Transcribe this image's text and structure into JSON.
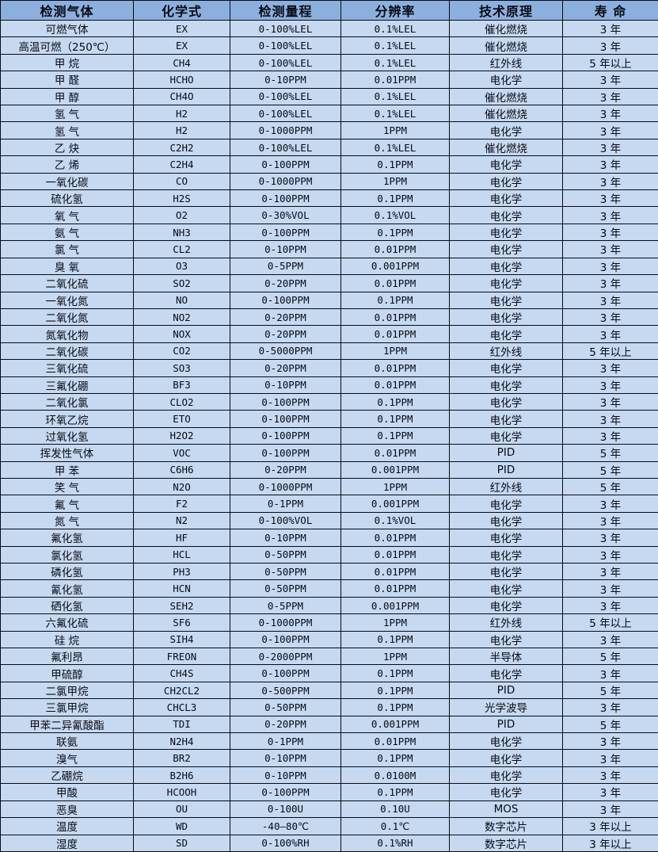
{
  "colors": {
    "header_bg": "#8bb0de",
    "row_bg": "#c6d9f1",
    "border": "#0a0a14",
    "text": "#0a0a14"
  },
  "chart_data": {
    "type": "table",
    "title": "",
    "columns": [
      "检测气体",
      "化学式",
      "检测量程",
      "分辨率",
      "技术原理",
      "寿 命"
    ],
    "rows": [
      [
        "可燃气体",
        "EX",
        "0-100%LEL",
        "0.1%LEL",
        "催化燃烧",
        "3 年"
      ],
      [
        "高温可燃（250℃）",
        "EX",
        "0-100%LEL",
        "0.1%LEL",
        "催化燃烧",
        "3 年"
      ],
      [
        "甲 烷",
        "CH4",
        "0-100%LEL",
        "0.1%LEL",
        "红外线",
        "5 年以上"
      ],
      [
        "甲 醛",
        "HCHO",
        "0-10PPM",
        "0.01PPM",
        "电化学",
        "3 年"
      ],
      [
        "甲 醇",
        "CH4O",
        "0-100%LEL",
        "0.1%LEL",
        "催化燃烧",
        "3 年"
      ],
      [
        "氢 气",
        "H2",
        "0-100%LEL",
        "0.1%LEL",
        "催化燃烧",
        "3 年"
      ],
      [
        "氢 气",
        "H2",
        "0-1000PPM",
        "1PPM",
        "电化学",
        "3 年"
      ],
      [
        "乙 炔",
        "C2H2",
        "0-100%LEL",
        "0.1%LEL",
        "催化燃烧",
        "3 年"
      ],
      [
        "乙 烯",
        "C2H4",
        "0-100PPM",
        "0.1PPM",
        "电化学",
        "3 年"
      ],
      [
        "一氧化碳",
        "CO",
        "0-1000PPM",
        "1PPM",
        "电化学",
        "3 年"
      ],
      [
        "硫化氢",
        "H2S",
        "0-100PPM",
        "0.1PPM",
        "电化学",
        "3 年"
      ],
      [
        "氧 气",
        "O2",
        "0-30%VOL",
        "0.1%VOL",
        "电化学",
        "3 年"
      ],
      [
        "氨 气",
        "NH3",
        "0-100PPM",
        "0.1PPM",
        "电化学",
        "3 年"
      ],
      [
        "氯 气",
        "CL2",
        "0-10PPM",
        "0.01PPM",
        "电化学",
        "3 年"
      ],
      [
        "臭 氧",
        "O3",
        "0-5PPM",
        "0.001PPM",
        "电化学",
        "3 年"
      ],
      [
        "二氧化硫",
        "SO2",
        "0-20PPM",
        "0.01PPM",
        "电化学",
        "3 年"
      ],
      [
        "一氧化氮",
        "NO",
        "0-100PPM",
        "0.1PPM",
        "电化学",
        "3 年"
      ],
      [
        "二氧化氮",
        "NO2",
        "0-20PPM",
        "0.01PPM",
        "电化学",
        "3 年"
      ],
      [
        "氮氧化物",
        "NOX",
        "0-20PPM",
        "0.01PPM",
        "电化学",
        "3 年"
      ],
      [
        "二氧化碳",
        "CO2",
        "0-5000PPM",
        "1PPM",
        "红外线",
        "5 年以上"
      ],
      [
        "三氧化硫",
        "SO3",
        "0-20PPM",
        "0.01PPM",
        "电化学",
        "3 年"
      ],
      [
        "三氟化硼",
        "BF3",
        "0-10PPM",
        "0.01PPM",
        "电化学",
        "3 年"
      ],
      [
        "二氧化氯",
        "CLO2",
        "0-100PPM",
        "0.1PPM",
        "电化学",
        "3 年"
      ],
      [
        "环氧乙烷",
        "ETO",
        "0-100PPM",
        "0.1PPM",
        "电化学",
        "3 年"
      ],
      [
        "过氧化氢",
        "H2O2",
        "0-100PPM",
        "0.1PPM",
        "电化学",
        "3 年"
      ],
      [
        "挥发性气体",
        "VOC",
        "0-100PPM",
        "0.01PPM",
        "PID",
        "5 年"
      ],
      [
        "甲 苯",
        "C6H6",
        "0-20PPM",
        "0.001PPM",
        "PID",
        "5 年"
      ],
      [
        "笑 气",
        "N2O",
        "0-1000PPM",
        "1PPM",
        "红外线",
        "5 年"
      ],
      [
        "氟 气",
        "F2",
        "0-1PPM",
        "0.001PPM",
        "电化学",
        "3 年"
      ],
      [
        "氮 气",
        "N2",
        "0-100%VOL",
        "0.1%VOL",
        "电化学",
        "3 年"
      ],
      [
        "氟化氢",
        "HF",
        "0-10PPM",
        "0.01PPM",
        "电化学",
        "3 年"
      ],
      [
        "氯化氢",
        "HCL",
        "0-50PPM",
        "0.01PPM",
        "电化学",
        "3 年"
      ],
      [
        "磷化氢",
        "PH3",
        "0-50PPM",
        "0.01PPM",
        "电化学",
        "3 年"
      ],
      [
        "氰化氢",
        "HCN",
        "0-50PPM",
        "0.01PPM",
        "电化学",
        "3 年"
      ],
      [
        "硒化氢",
        "SEH2",
        "0-5PPM",
        "0.001PPM",
        "电化学",
        "3 年"
      ],
      [
        "六氟化硫",
        "SF6",
        "0-1000PPM",
        "1PPM",
        "红外线",
        "5 年以上"
      ],
      [
        "硅 烷",
        "SIH4",
        "0-100PPM",
        "0.1PPM",
        "电化学",
        "3 年"
      ],
      [
        "氟利昂",
        "FREON",
        "0-2000PPM",
        "1PPM",
        "半导体",
        "5 年"
      ],
      [
        "甲硫醇",
        "CH4S",
        "0-100PPM",
        "0.1PPM",
        "电化学",
        "3 年"
      ],
      [
        "二氯甲烷",
        "CH2CL2",
        "0-500PPM",
        "0.1PPM",
        "PID",
        "5 年"
      ],
      [
        "三氯甲烷",
        "CHCL3",
        "0-50PPM",
        "0.1PPM",
        "光学波导",
        "3 年"
      ],
      [
        "甲苯二异氰酸酯",
        "TDI",
        "0-20PPM",
        "0.001PPM",
        "PID",
        "5 年"
      ],
      [
        "联氨",
        "N2H4",
        "0-1PPM",
        "0.01PPM",
        "电化学",
        "3 年"
      ],
      [
        "溴气",
        "BR2",
        "0-10PPM",
        "0.1PPM",
        "电化学",
        "3 年"
      ],
      [
        "乙硼烷",
        "B2H6",
        "0-10PPM",
        "0.0100M",
        "电化学",
        "3 年"
      ],
      [
        "甲酸",
        "HCOOH",
        "0-100PPM",
        "0.1PPM",
        "电化学",
        "3 年"
      ],
      [
        "恶臭",
        "OU",
        "0-100U",
        "0.10U",
        "MOS",
        "3 年"
      ],
      [
        "温度",
        "WD",
        "-40—80℃",
        "0.1℃",
        "数字芯片",
        "3 年以上"
      ],
      [
        "湿度",
        "SD",
        "0-100%RH",
        "0.1%RH",
        "数字芯片",
        "3 年以上"
      ]
    ]
  }
}
